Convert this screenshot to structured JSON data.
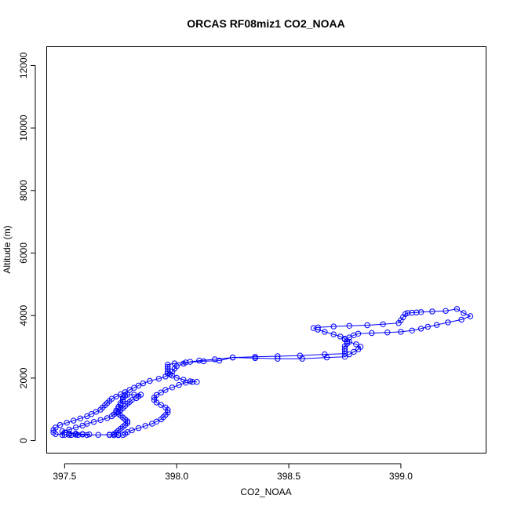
{
  "chart_data": {
    "type": "line",
    "title": "ORCAS RF08miz1 CO2_NOAA",
    "xlabel": "CO2_NOAA",
    "ylabel": "Altitude (m)",
    "xlim": [
      397.42,
      399.38
    ],
    "ylim": [
      -400,
      12600
    ],
    "xticks": [
      397.5,
      398.0,
      398.5,
      399.0
    ],
    "xtick_labels": [
      "397.5",
      "398.0",
      "398.5",
      "399.0"
    ],
    "yticks": [
      0,
      2000,
      4000,
      6000,
      8000,
      10000,
      12000
    ],
    "ytick_labels": [
      "0",
      "2000",
      "4000",
      "6000",
      "8000",
      "10000",
      "12000"
    ],
    "grid": false,
    "color": "#0000ff",
    "series": [
      {
        "points": [
          [
            397.49,
            180
          ],
          [
            397.52,
            185
          ],
          [
            397.55,
            190
          ],
          [
            397.58,
            195
          ],
          [
            397.61,
            200
          ],
          [
            397.58,
            210
          ],
          [
            397.55,
            220
          ],
          [
            397.52,
            230
          ],
          [
            397.5,
            260
          ],
          [
            397.49,
            300
          ],
          [
            397.52,
            350
          ],
          [
            397.55,
            420
          ],
          [
            397.58,
            480
          ],
          [
            397.6,
            540
          ],
          [
            397.63,
            600
          ],
          [
            397.66,
            660
          ],
          [
            397.69,
            720
          ],
          [
            397.71,
            780
          ],
          [
            397.72,
            840
          ],
          [
            397.73,
            900
          ],
          [
            397.73,
            960
          ],
          [
            397.74,
            1020
          ],
          [
            397.74,
            1080
          ],
          [
            397.75,
            1140
          ],
          [
            397.75,
            1200
          ],
          [
            397.76,
            1260
          ],
          [
            397.76,
            1320
          ],
          [
            397.76,
            1380
          ],
          [
            397.77,
            1440
          ],
          [
            397.78,
            1470
          ],
          [
            397.81,
            1470
          ],
          [
            397.84,
            1470
          ],
          [
            397.83,
            1420
          ],
          [
            397.82,
            1360
          ],
          [
            397.8,
            1300
          ],
          [
            397.79,
            1240
          ],
          [
            397.78,
            1180
          ],
          [
            397.77,
            1110
          ],
          [
            397.76,
            1040
          ],
          [
            397.75,
            980
          ],
          [
            397.74,
            920
          ],
          [
            397.74,
            860
          ],
          [
            397.75,
            800
          ],
          [
            397.76,
            740
          ],
          [
            397.77,
            680
          ],
          [
            397.78,
            620
          ],
          [
            397.78,
            560
          ],
          [
            397.77,
            500
          ],
          [
            397.76,
            440
          ],
          [
            397.75,
            380
          ],
          [
            397.74,
            320
          ],
          [
            397.73,
            260
          ],
          [
            397.72,
            210
          ],
          [
            397.7,
            180
          ],
          [
            397.72,
            175
          ],
          [
            397.74,
            175
          ],
          [
            397.76,
            180
          ],
          [
            397.77,
            220
          ],
          [
            397.78,
            270
          ],
          [
            397.8,
            330
          ],
          [
            397.83,
            400
          ],
          [
            397.86,
            470
          ],
          [
            397.89,
            540
          ],
          [
            397.91,
            610
          ],
          [
            397.93,
            680
          ],
          [
            397.94,
            750
          ],
          [
            397.95,
            820
          ],
          [
            397.96,
            900
          ],
          [
            397.96,
            980
          ],
          [
            397.95,
            1060
          ],
          [
            397.93,
            1140
          ],
          [
            397.91,
            1220
          ],
          [
            397.9,
            1300
          ],
          [
            397.9,
            1380
          ],
          [
            397.91,
            1460
          ],
          [
            397.93,
            1540
          ],
          [
            397.95,
            1620
          ],
          [
            397.98,
            1700
          ],
          [
            398.01,
            1780
          ],
          [
            398.04,
            1850
          ],
          [
            398.07,
            1880
          ],
          [
            398.09,
            1880
          ],
          [
            398.06,
            1900
          ],
          [
            398.03,
            1950
          ],
          [
            398.0,
            2010
          ],
          [
            397.98,
            2080
          ],
          [
            397.96,
            2150
          ],
          [
            397.96,
            2220
          ],
          [
            397.96,
            2290
          ],
          [
            397.96,
            2360
          ],
          [
            397.96,
            2430
          ],
          [
            397.99,
            2470
          ],
          [
            398.04,
            2500
          ],
          [
            398.12,
            2540
          ],
          [
            398.19,
            2560
          ],
          [
            398.25,
            2660
          ],
          [
            398.35,
            2640
          ],
          [
            398.45,
            2620
          ],
          [
            398.56,
            2620
          ],
          [
            398.67,
            2660
          ],
          [
            398.75,
            2680
          ],
          [
            398.77,
            2760
          ],
          [
            398.79,
            2840
          ],
          [
            398.81,
            2920
          ],
          [
            398.82,
            3000
          ],
          [
            398.8,
            3080
          ],
          [
            398.77,
            3160
          ],
          [
            398.75,
            3240
          ],
          [
            398.77,
            3300
          ],
          [
            398.79,
            3370
          ],
          [
            398.81,
            3420
          ],
          [
            398.87,
            3440
          ],
          [
            398.94,
            3460
          ],
          [
            399.0,
            3480
          ],
          [
            399.05,
            3520
          ],
          [
            399.09,
            3580
          ],
          [
            399.12,
            3640
          ],
          [
            399.16,
            3700
          ],
          [
            399.21,
            3780
          ],
          [
            399.27,
            3870
          ],
          [
            399.31,
            3980
          ],
          [
            399.28,
            4080
          ],
          [
            399.25,
            4210
          ],
          [
            399.2,
            4150
          ],
          [
            399.14,
            4130
          ],
          [
            399.09,
            4110
          ],
          [
            399.07,
            4100
          ],
          [
            399.05,
            4090
          ],
          [
            399.03,
            4080
          ],
          [
            399.02,
            4050
          ],
          [
            399.01,
            3950
          ],
          [
            399.0,
            3850
          ],
          [
            398.99,
            3760
          ],
          [
            398.92,
            3720
          ],
          [
            398.85,
            3690
          ],
          [
            398.77,
            3670
          ],
          [
            398.7,
            3650
          ],
          [
            398.63,
            3620
          ],
          [
            398.61,
            3600
          ],
          [
            398.63,
            3550
          ],
          [
            398.66,
            3480
          ],
          [
            398.7,
            3400
          ],
          [
            398.73,
            3330
          ],
          [
            398.75,
            3260
          ],
          [
            398.76,
            3180
          ],
          [
            398.76,
            3100
          ],
          [
            398.75,
            3020
          ],
          [
            398.75,
            2940
          ],
          [
            398.75,
            2860
          ],
          [
            398.75,
            2780
          ],
          [
            398.66,
            2760
          ],
          [
            398.55,
            2720
          ],
          [
            398.45,
            2700
          ],
          [
            398.35,
            2680
          ],
          [
            398.25,
            2660
          ],
          [
            398.17,
            2600
          ],
          [
            398.1,
            2560
          ],
          [
            398.06,
            2520
          ],
          [
            398.03,
            2460
          ],
          [
            398.0,
            2380
          ],
          [
            397.99,
            2300
          ],
          [
            397.98,
            2210
          ],
          [
            397.97,
            2120
          ],
          [
            397.95,
            2050
          ],
          [
            397.92,
            1980
          ],
          [
            397.88,
            1910
          ],
          [
            397.85,
            1830
          ],
          [
            397.83,
            1760
          ],
          [
            397.81,
            1690
          ],
          [
            397.79,
            1620
          ],
          [
            397.77,
            1550
          ],
          [
            397.75,
            1480
          ],
          [
            397.73,
            1410
          ],
          [
            397.71,
            1340
          ],
          [
            397.7,
            1270
          ],
          [
            397.69,
            1200
          ],
          [
            397.68,
            1130
          ],
          [
            397.67,
            1060
          ],
          [
            397.66,
            990
          ],
          [
            397.64,
            920
          ],
          [
            397.62,
            850
          ],
          [
            397.6,
            780
          ],
          [
            397.57,
            710
          ],
          [
            397.54,
            640
          ],
          [
            397.51,
            570
          ],
          [
            397.48,
            500
          ],
          [
            397.46,
            420
          ],
          [
            397.45,
            340
          ],
          [
            397.45,
            260
          ],
          [
            397.46,
            210
          ],
          [
            397.5,
            185
          ],
          [
            397.53,
            180
          ],
          [
            397.56,
            180
          ],
          [
            397.6,
            180
          ],
          [
            397.65,
            185
          ],
          [
            397.7,
            190
          ],
          [
            397.74,
            190
          ]
        ]
      }
    ]
  }
}
